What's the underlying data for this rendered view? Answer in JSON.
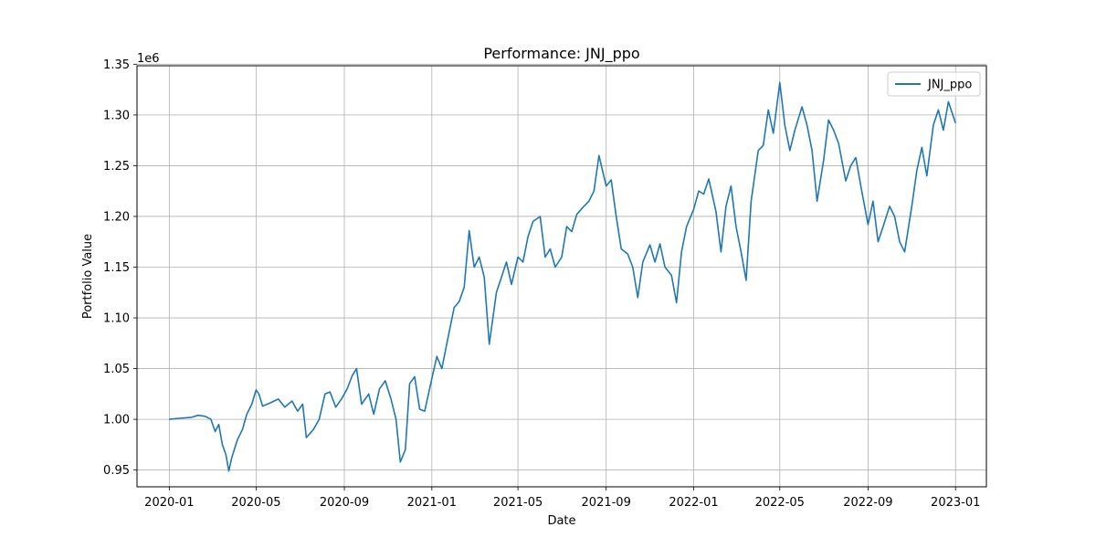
{
  "chart_data": {
    "type": "line",
    "title": "Performance: JNJ_ppo",
    "xlabel": "Date",
    "ylabel": "Portfolio Value",
    "y_offset_label": "1e6",
    "grid": true,
    "legend_position": "top-right",
    "xlim": [
      "2019-11-17",
      "2023-02-13"
    ],
    "ylim": [
      0.9335,
      1.3485
    ],
    "x_ticks": [
      "2020-01",
      "2020-05",
      "2020-09",
      "2021-01",
      "2021-05",
      "2021-09",
      "2022-01",
      "2022-05",
      "2022-09",
      "2023-01"
    ],
    "y_ticks": [
      0.95,
      1.0,
      1.05,
      1.1,
      1.15,
      1.2,
      1.25,
      1.3,
      1.35
    ],
    "y_tick_labels": [
      "0.95",
      "1.00",
      "1.05",
      "1.10",
      "1.15",
      "1.20",
      "1.25",
      "1.30",
      "1.35"
    ],
    "series": [
      {
        "name": "JNJ_ppo",
        "color": "#1f77b4",
        "points": [
          [
            "2020-01-01",
            1.0
          ],
          [
            "2020-01-15",
            1.001
          ],
          [
            "2020-02-01",
            1.002
          ],
          [
            "2020-02-10",
            1.004
          ],
          [
            "2020-02-20",
            1.003
          ],
          [
            "2020-02-28",
            1.0
          ],
          [
            "2020-03-05",
            0.988
          ],
          [
            "2020-03-10",
            0.995
          ],
          [
            "2020-03-15",
            0.975
          ],
          [
            "2020-03-20",
            0.965
          ],
          [
            "2020-03-24",
            0.949
          ],
          [
            "2020-03-28",
            0.962
          ],
          [
            "2020-04-05",
            0.98
          ],
          [
            "2020-04-12",
            0.99
          ],
          [
            "2020-04-18",
            1.005
          ],
          [
            "2020-04-25",
            1.015
          ],
          [
            "2020-05-01",
            1.029
          ],
          [
            "2020-05-05",
            1.025
          ],
          [
            "2020-05-10",
            1.013
          ],
          [
            "2020-05-20",
            1.016
          ],
          [
            "2020-06-01",
            1.02
          ],
          [
            "2020-06-10",
            1.012
          ],
          [
            "2020-06-20",
            1.018
          ],
          [
            "2020-06-28",
            1.008
          ],
          [
            "2020-07-05",
            1.015
          ],
          [
            "2020-07-10",
            0.982
          ],
          [
            "2020-07-20",
            0.99
          ],
          [
            "2020-07-28",
            1.0
          ],
          [
            "2020-08-05",
            1.025
          ],
          [
            "2020-08-12",
            1.027
          ],
          [
            "2020-08-20",
            1.012
          ],
          [
            "2020-08-28",
            1.02
          ],
          [
            "2020-09-05",
            1.03
          ],
          [
            "2020-09-12",
            1.043
          ],
          [
            "2020-09-18",
            1.05
          ],
          [
            "2020-09-25",
            1.015
          ],
          [
            "2020-10-05",
            1.025
          ],
          [
            "2020-10-12",
            1.005
          ],
          [
            "2020-10-20",
            1.03
          ],
          [
            "2020-10-28",
            1.038
          ],
          [
            "2020-11-05",
            1.02
          ],
          [
            "2020-11-12",
            1.0
          ],
          [
            "2020-11-18",
            0.958
          ],
          [
            "2020-11-25",
            0.97
          ],
          [
            "2020-12-01",
            1.035
          ],
          [
            "2020-12-08",
            1.042
          ],
          [
            "2020-12-15",
            1.01
          ],
          [
            "2020-12-22",
            1.008
          ],
          [
            "2021-01-01",
            1.04
          ],
          [
            "2021-01-08",
            1.062
          ],
          [
            "2021-01-15",
            1.05
          ],
          [
            "2021-01-22",
            1.075
          ],
          [
            "2021-02-01",
            1.11
          ],
          [
            "2021-02-08",
            1.116
          ],
          [
            "2021-02-15",
            1.13
          ],
          [
            "2021-02-22",
            1.186
          ],
          [
            "2021-03-01",
            1.15
          ],
          [
            "2021-03-08",
            1.16
          ],
          [
            "2021-03-15",
            1.14
          ],
          [
            "2021-03-22",
            1.074
          ],
          [
            "2021-04-01",
            1.125
          ],
          [
            "2021-04-08",
            1.14
          ],
          [
            "2021-04-15",
            1.155
          ],
          [
            "2021-04-22",
            1.133
          ],
          [
            "2021-05-01",
            1.16
          ],
          [
            "2021-05-08",
            1.155
          ],
          [
            "2021-05-15",
            1.18
          ],
          [
            "2021-05-22",
            1.195
          ],
          [
            "2021-06-01",
            1.2
          ],
          [
            "2021-06-08",
            1.16
          ],
          [
            "2021-06-15",
            1.168
          ],
          [
            "2021-06-22",
            1.15
          ],
          [
            "2021-07-01",
            1.16
          ],
          [
            "2021-07-08",
            1.19
          ],
          [
            "2021-07-15",
            1.185
          ],
          [
            "2021-07-22",
            1.202
          ],
          [
            "2021-08-01",
            1.21
          ],
          [
            "2021-08-08",
            1.215
          ],
          [
            "2021-08-15",
            1.225
          ],
          [
            "2021-08-22",
            1.26
          ],
          [
            "2021-09-01",
            1.23
          ],
          [
            "2021-09-08",
            1.236
          ],
          [
            "2021-09-15",
            1.2
          ],
          [
            "2021-09-22",
            1.168
          ],
          [
            "2021-10-01",
            1.163
          ],
          [
            "2021-10-08",
            1.15
          ],
          [
            "2021-10-15",
            1.12
          ],
          [
            "2021-10-22",
            1.155
          ],
          [
            "2021-11-01",
            1.172
          ],
          [
            "2021-11-08",
            1.155
          ],
          [
            "2021-11-15",
            1.173
          ],
          [
            "2021-11-22",
            1.15
          ],
          [
            "2021-12-01",
            1.142
          ],
          [
            "2021-12-08",
            1.115
          ],
          [
            "2021-12-15",
            1.165
          ],
          [
            "2021-12-22",
            1.19
          ],
          [
            "2022-01-01",
            1.207
          ],
          [
            "2022-01-08",
            1.225
          ],
          [
            "2022-01-15",
            1.222
          ],
          [
            "2022-01-22",
            1.237
          ],
          [
            "2022-02-01",
            1.205
          ],
          [
            "2022-02-08",
            1.165
          ],
          [
            "2022-02-15",
            1.21
          ],
          [
            "2022-02-22",
            1.23
          ],
          [
            "2022-03-01",
            1.19
          ],
          [
            "2022-03-08",
            1.165
          ],
          [
            "2022-03-15",
            1.137
          ],
          [
            "2022-03-22",
            1.215
          ],
          [
            "2022-04-01",
            1.265
          ],
          [
            "2022-04-08",
            1.27
          ],
          [
            "2022-04-15",
            1.305
          ],
          [
            "2022-04-22",
            1.282
          ],
          [
            "2022-05-01",
            1.332
          ],
          [
            "2022-05-08",
            1.29
          ],
          [
            "2022-05-15",
            1.265
          ],
          [
            "2022-05-22",
            1.285
          ],
          [
            "2022-06-01",
            1.308
          ],
          [
            "2022-06-08",
            1.29
          ],
          [
            "2022-06-15",
            1.265
          ],
          [
            "2022-06-22",
            1.215
          ],
          [
            "2022-07-01",
            1.255
          ],
          [
            "2022-07-08",
            1.295
          ],
          [
            "2022-07-15",
            1.285
          ],
          [
            "2022-07-22",
            1.272
          ],
          [
            "2022-08-01",
            1.235
          ],
          [
            "2022-08-08",
            1.25
          ],
          [
            "2022-08-15",
            1.258
          ],
          [
            "2022-08-22",
            1.23
          ],
          [
            "2022-09-01",
            1.192
          ],
          [
            "2022-09-08",
            1.215
          ],
          [
            "2022-09-15",
            1.175
          ],
          [
            "2022-09-22",
            1.19
          ],
          [
            "2022-10-01",
            1.21
          ],
          [
            "2022-10-08",
            1.2
          ],
          [
            "2022-10-15",
            1.175
          ],
          [
            "2022-10-22",
            1.165
          ],
          [
            "2022-11-01",
            1.21
          ],
          [
            "2022-11-08",
            1.245
          ],
          [
            "2022-11-15",
            1.268
          ],
          [
            "2022-11-22",
            1.24
          ],
          [
            "2022-12-01",
            1.29
          ],
          [
            "2022-12-08",
            1.305
          ],
          [
            "2022-12-15",
            1.285
          ],
          [
            "2022-12-22",
            1.313
          ],
          [
            "2023-01-01",
            1.292
          ]
        ]
      }
    ]
  }
}
